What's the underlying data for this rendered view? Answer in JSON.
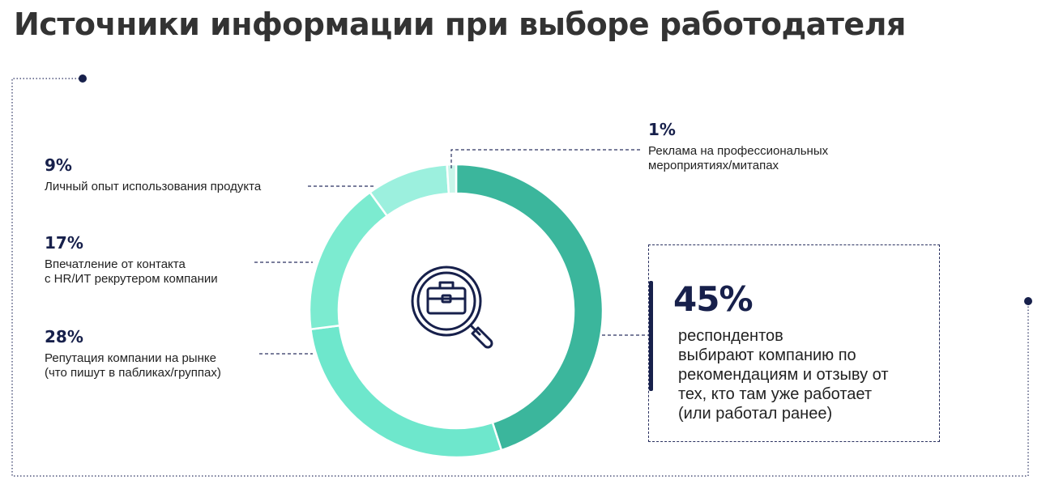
{
  "title": "Источники информации при выборе работодателя",
  "icon": "briefcase-magnifier-icon",
  "colors": {
    "navy": "#17204b",
    "segment_45": "#3bb69c",
    "segment_28": "#6ee7cc",
    "segment_17": "#7cebd0",
    "segment_9": "#9cf0de",
    "segment_1": "#c9f6ea"
  },
  "chart_data": {
    "type": "pie",
    "donut": true,
    "slices": [
      {
        "value": 45,
        "label": "45%",
        "description": "респондентов\nвыбирают компанию по\nрекомендациям и отзыву от\nтех, кто там уже работает\n(или работал ранее)",
        "color": "#3bb69c"
      },
      {
        "value": 28,
        "label": "28%",
        "description": "Репутация компании на рынке\n(что пишут в пабликах/группах)",
        "color": "#6ee7cc"
      },
      {
        "value": 17,
        "label": "17%",
        "description": "Впечатление от контакта\nс HR/ИТ рекрутером компании",
        "color": "#7cebd0"
      },
      {
        "value": 9,
        "label": "9%",
        "description": "Личный опыт использования продукта",
        "color": "#9cf0de"
      },
      {
        "value": 1,
        "label": "1%",
        "description": "Реклама на профессиональных\nмероприятиях/митапах",
        "color": "#c9f6ea"
      }
    ]
  }
}
